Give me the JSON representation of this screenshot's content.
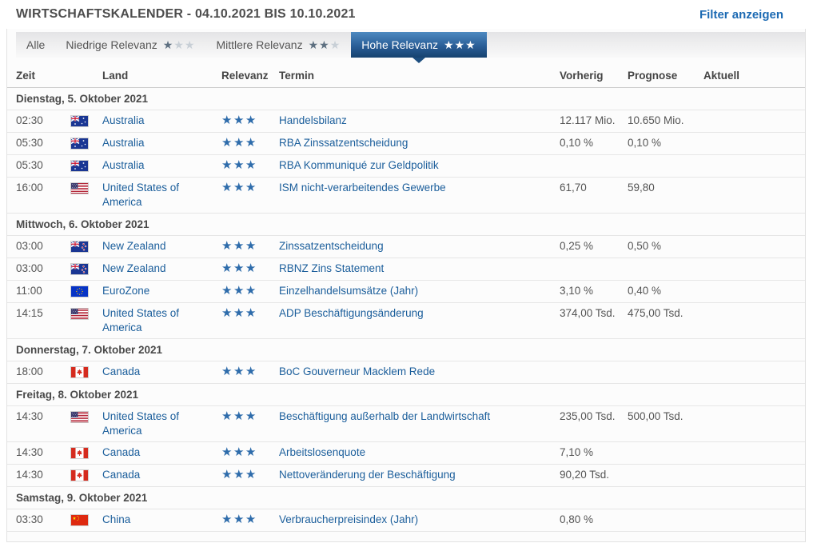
{
  "header": {
    "title": "WIRTSCHAFTSKALENDER - 04.10.2021 BIS 10.10.2021",
    "filter_link": "Filter anzeigen"
  },
  "tabs": [
    {
      "label": "Alle",
      "stars_filled": 0,
      "stars_total": 0,
      "active": false
    },
    {
      "label": "Niedrige Relevanz",
      "stars_filled": 1,
      "stars_total": 3,
      "active": false
    },
    {
      "label": "Mittlere Relevanz",
      "stars_filled": 2,
      "stars_total": 3,
      "active": false
    },
    {
      "label": "Hohe Relevanz",
      "stars_filled": 3,
      "stars_total": 3,
      "active": true
    }
  ],
  "table": {
    "columns": [
      "Zeit",
      "Land",
      "Relevanz",
      "Termin",
      "Vorherig",
      "Prognose",
      "Aktuell"
    ],
    "groups": [
      {
        "date": "Dienstag, 5. Oktober 2021",
        "rows": [
          {
            "time": "02:30",
            "country": "Australia",
            "flag": "au",
            "relevance": 3,
            "event": "Handelsbilanz",
            "previous": "12.117 Mio.",
            "forecast": "10.650 Mio.",
            "actual": ""
          },
          {
            "time": "05:30",
            "country": "Australia",
            "flag": "au",
            "relevance": 3,
            "event": "RBA Zinssatzentscheidung",
            "previous": "0,10 %",
            "forecast": "0,10 %",
            "actual": ""
          },
          {
            "time": "05:30",
            "country": "Australia",
            "flag": "au",
            "relevance": 3,
            "event": "RBA Kommuniqué zur Geldpolitik",
            "previous": "",
            "forecast": "",
            "actual": ""
          },
          {
            "time": "16:00",
            "country": "United States of America",
            "flag": "us",
            "relevance": 3,
            "event": "ISM nicht-verarbeitendes Gewerbe",
            "previous": "61,70",
            "forecast": "59,80",
            "actual": ""
          }
        ]
      },
      {
        "date": "Mittwoch, 6. Oktober 2021",
        "rows": [
          {
            "time": "03:00",
            "country": "New Zealand",
            "flag": "nz",
            "relevance": 3,
            "event": "Zinssatzentscheidung",
            "previous": "0,25 %",
            "forecast": "0,50 %",
            "actual": ""
          },
          {
            "time": "03:00",
            "country": "New Zealand",
            "flag": "nz",
            "relevance": 3,
            "event": "RBNZ Zins Statement",
            "previous": "",
            "forecast": "",
            "actual": ""
          },
          {
            "time": "11:00",
            "country": "EuroZone",
            "flag": "eu",
            "relevance": 3,
            "event": "Einzelhandelsumsätze (Jahr)",
            "previous": "3,10 %",
            "forecast": "0,40 %",
            "actual": ""
          },
          {
            "time": "14:15",
            "country": "United States of America",
            "flag": "us",
            "relevance": 3,
            "event": "ADP Beschäftigungsänderung",
            "previous": "374,00 Tsd.",
            "forecast": "475,00 Tsd.",
            "actual": ""
          }
        ]
      },
      {
        "date": "Donnerstag, 7. Oktober 2021",
        "rows": [
          {
            "time": "18:00",
            "country": "Canada",
            "flag": "ca",
            "relevance": 3,
            "event": "BoC Gouverneur Macklem Rede",
            "previous": "",
            "forecast": "",
            "actual": ""
          }
        ]
      },
      {
        "date": "Freitag, 8. Oktober 2021",
        "rows": [
          {
            "time": "14:30",
            "country": "United States of America",
            "flag": "us",
            "relevance": 3,
            "event": "Beschäftigung außerhalb der Landwirtschaft",
            "previous": "235,00 Tsd.",
            "forecast": "500,00 Tsd.",
            "actual": ""
          },
          {
            "time": "14:30",
            "country": "Canada",
            "flag": "ca",
            "relevance": 3,
            "event": "Arbeitslosenquote",
            "previous": "7,10 %",
            "forecast": "",
            "actual": ""
          },
          {
            "time": "14:30",
            "country": "Canada",
            "flag": "ca",
            "relevance": 3,
            "event": "Nettoveränderung der Beschäftigung",
            "previous": "90,20 Tsd.",
            "forecast": "",
            "actual": ""
          }
        ]
      },
      {
        "date": "Samstag, 9. Oktober 2021",
        "rows": [
          {
            "time": "03:30",
            "country": "China",
            "flag": "cn",
            "relevance": 3,
            "event": "Verbraucherpreisindex (Jahr)",
            "previous": "0,80 %",
            "forecast": "",
            "actual": ""
          }
        ]
      }
    ]
  },
  "colors": {
    "link_blue": "#1b5e9b",
    "accent_blue": "#1c6ab3",
    "star_blue": "#2e6cab",
    "active_tab_top": "#4d89c0",
    "active_tab_bottom": "#16426f",
    "title_gray": "#4d4d4d"
  }
}
